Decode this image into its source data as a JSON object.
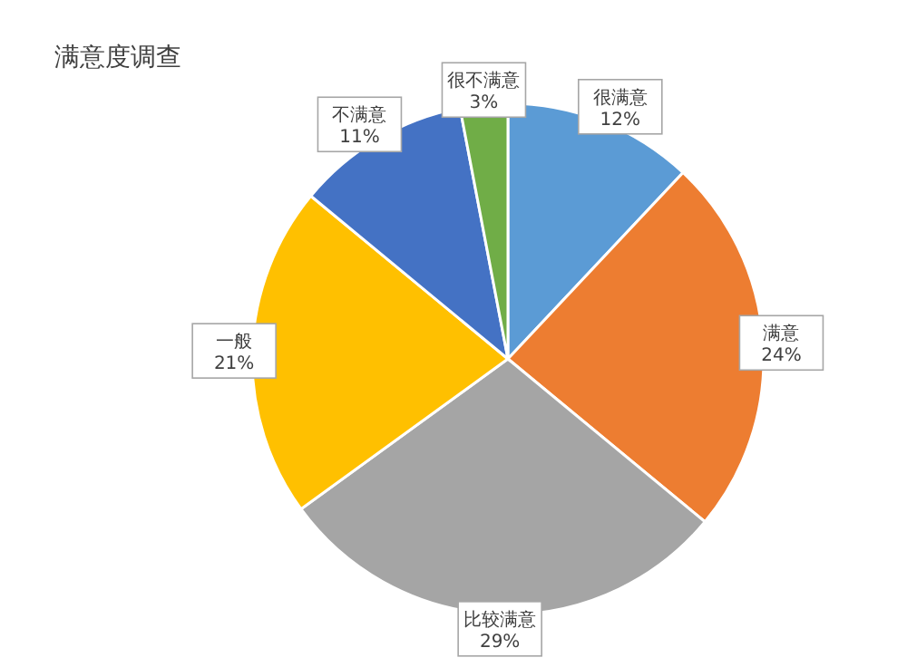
{
  "chart_data": {
    "type": "pie",
    "title": "满意度调查",
    "categories": [
      "很满意",
      "满意",
      "比较满意",
      "一般",
      "不满意",
      "很不满意"
    ],
    "values": [
      12,
      24,
      29,
      21,
      11,
      3
    ],
    "value_labels": [
      "12%",
      "24%",
      "29%",
      "21%",
      "11%",
      "3%"
    ],
    "colors": [
      "#5b9bd5",
      "#ed7d31",
      "#a5a5a5",
      "#ffc000",
      "#4472c4",
      "#70ad47"
    ]
  }
}
